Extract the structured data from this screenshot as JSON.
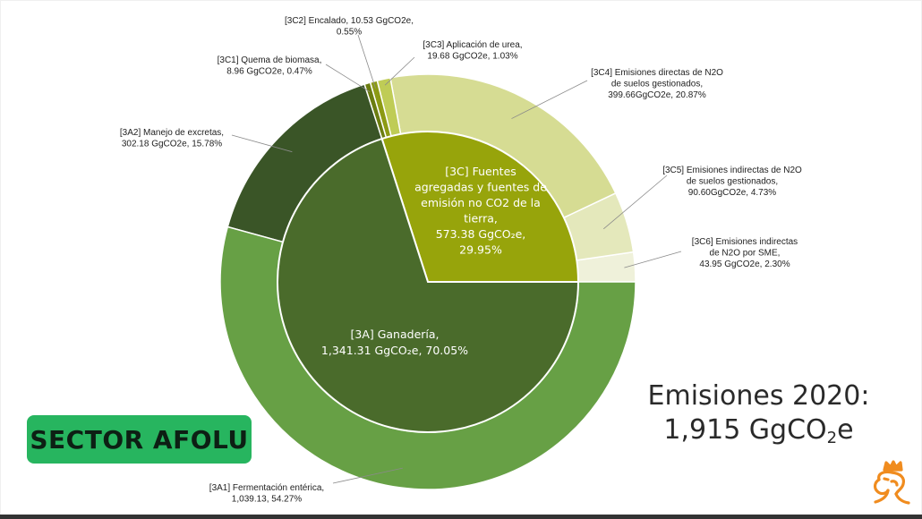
{
  "chart_data": {
    "type": "pie",
    "subtype": "double-donut (sunburst)",
    "inner": [
      {
        "id": "3A",
        "label": "[3A] Ganadería,",
        "value": 1341.31,
        "value_text": "1,341.31 GgCO₂e, 70.05%",
        "percent": 70.05,
        "color": "#4a6b2b"
      },
      {
        "id": "3C",
        "label": "[3C] Fuentes agregadas y fuentes de emisión no CO2 de la tierra,",
        "label_lines": [
          "[3C] Fuentes",
          "agregadas y fuentes de",
          "emisión no CO2 de la",
          "tierra,"
        ],
        "value": 573.38,
        "value_text": "573.38 GgCO₂e,",
        "percent_text": "29.95%",
        "percent": 29.95,
        "color": "#97a40b"
      }
    ],
    "outer": [
      {
        "id": "3A1",
        "label_lines": [
          "[3A1] Fermentación entérica,",
          "1,039.13, 54.27%"
        ],
        "value": 1039.13,
        "percent": 54.27,
        "color": "#67a045"
      },
      {
        "id": "3A2",
        "label_lines": [
          "[3A2] Manejo de excretas,",
          "302.18 GgCO2e, 15.78%"
        ],
        "value": 302.18,
        "percent": 15.78,
        "color": "#3a5527"
      },
      {
        "id": "3C1",
        "label_lines": [
          "[3C1] Quema de biomasa,",
          "8.96 GgCO2e, 0.47%"
        ],
        "value": 8.96,
        "percent": 0.47,
        "color": "#6b7d10"
      },
      {
        "id": "3C2",
        "label_lines": [
          "[3C2] Encalado,  10.53 GgCO2e,",
          "0.55%"
        ],
        "value": 10.53,
        "percent": 0.55,
        "color": "#8c9a14"
      },
      {
        "id": "3C3",
        "label_lines": [
          "[3C3] Aplicación de urea,",
          "19.68 GgCO2e, 1.03%"
        ],
        "value": 19.68,
        "percent": 1.03,
        "color": "#bfcc56"
      },
      {
        "id": "3C4",
        "label_lines": [
          "[3C4] Emisiones directas de N2O",
          "de suelos gestionados,",
          "399.66GgCO2e, 20.87%"
        ],
        "value": 399.66,
        "percent": 20.87,
        "color": "#d6dc93"
      },
      {
        "id": "3C5",
        "label_lines": [
          "[3C5] Emisiones indirectas de N2O",
          "de suelos gestionados,",
          "90.60GgCO2e, 4.73%"
        ],
        "value": 90.6,
        "percent": 4.73,
        "color": "#e4e8bb"
      },
      {
        "id": "3C6",
        "label_lines": [
          "[3C6] Emisiones indirectas",
          "de N2O por SME,",
          "43.95 GgCO2e, 2.30%"
        ],
        "value": 43.95,
        "percent": 2.3,
        "color": "#eff1da"
      }
    ],
    "start_angle_deg": 0,
    "direction": "counterclockwise",
    "total_title": "Emisiones 2020:",
    "total_value": "1,915 GgCO",
    "total_sub": "2",
    "total_suffix": "e"
  },
  "badge": {
    "text": "SECTOR AFOLU"
  },
  "colors": {
    "page_bg": "#ffffff",
    "badge": "#27b55f",
    "logo": "#f08c1f"
  },
  "icons": {
    "logo": "crowned-lion-logo-icon"
  }
}
